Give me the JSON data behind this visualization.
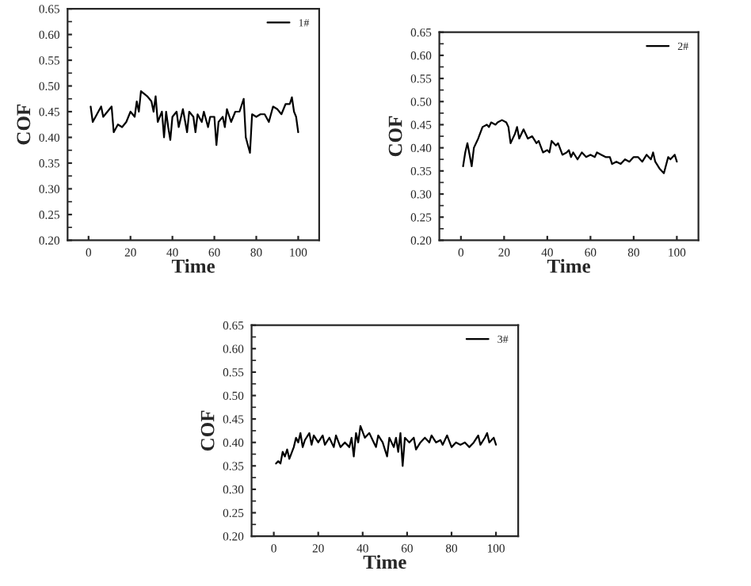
{
  "chart_data": [
    {
      "type": "line",
      "xlabel": "Time",
      "ylabel": "COF",
      "legend": "top right",
      "xlim": [
        -10,
        110
      ],
      "xticks": [
        0,
        20,
        40,
        60,
        80,
        100
      ],
      "ylim": [
        0.2,
        0.65
      ],
      "yticks": [
        {
          "value": 0.2,
          "label": "0.20"
        },
        {
          "value": 0.25,
          "label": "0.25"
        },
        {
          "value": 0.3,
          "label": "0.30"
        },
        {
          "value": 0.35,
          "label": "0.35"
        },
        {
          "value": 0.4,
          "label": "0.40"
        },
        {
          "value": 0.45,
          "label": "0.45"
        },
        {
          "value": 0.5,
          "label": "0.50"
        },
        {
          "value": 0.55,
          "label": "0.55"
        },
        {
          "value": 0.6,
          "label": "0.60"
        },
        {
          "value": 0.65,
          "label": "0.65"
        }
      ],
      "series": [
        {
          "name": "1#",
          "color": "#000000",
          "x": [
            1,
            2,
            4,
            6,
            7,
            9,
            11,
            12,
            14,
            16,
            18,
            20,
            22,
            23,
            24,
            25,
            28,
            30,
            31,
            32,
            33,
            35,
            36,
            37,
            38,
            39,
            40,
            42,
            43,
            45,
            47,
            48,
            50,
            51,
            52,
            54,
            55,
            57,
            58,
            60,
            61,
            62,
            64,
            65,
            66,
            68,
            70,
            72,
            74,
            75,
            77,
            78,
            80,
            82,
            84,
            86,
            88,
            90,
            92,
            94,
            96,
            97,
            98,
            99,
            100
          ],
          "values": [
            0.46,
            0.43,
            0.445,
            0.46,
            0.44,
            0.45,
            0.46,
            0.41,
            0.425,
            0.42,
            0.43,
            0.45,
            0.44,
            0.47,
            0.45,
            0.49,
            0.48,
            0.47,
            0.45,
            0.48,
            0.43,
            0.45,
            0.4,
            0.45,
            0.42,
            0.395,
            0.44,
            0.45,
            0.42,
            0.455,
            0.41,
            0.45,
            0.44,
            0.41,
            0.445,
            0.43,
            0.45,
            0.42,
            0.44,
            0.44,
            0.385,
            0.43,
            0.44,
            0.42,
            0.455,
            0.43,
            0.45,
            0.45,
            0.475,
            0.4,
            0.37,
            0.445,
            0.44,
            0.445,
            0.445,
            0.43,
            0.46,
            0.455,
            0.445,
            0.465,
            0.465,
            0.478,
            0.45,
            0.44,
            0.41
          ]
        }
      ]
    },
    {
      "type": "line",
      "xlabel": "Time",
      "ylabel": "COF",
      "legend": "top right",
      "xlim": [
        -10,
        110
      ],
      "xticks": [
        0,
        20,
        40,
        60,
        80,
        100
      ],
      "ylim": [
        0.2,
        0.65
      ],
      "yticks": [
        {
          "value": 0.2,
          "label": "0.20"
        },
        {
          "value": 0.25,
          "label": "0.25"
        },
        {
          "value": 0.3,
          "label": "0.30"
        },
        {
          "value": 0.35,
          "label": "0.35"
        },
        {
          "value": 0.4,
          "label": "0.40"
        },
        {
          "value": 0.45,
          "label": "0.45"
        },
        {
          "value": 0.5,
          "label": "0.50"
        },
        {
          "value": 0.55,
          "label": "0.55"
        },
        {
          "value": 0.6,
          "label": "0.60"
        },
        {
          "value": 0.65,
          "label": "0.65"
        }
      ],
      "series": [
        {
          "name": "2#",
          "color": "#000000",
          "x": [
            1,
            2,
            3,
            5,
            6,
            8,
            10,
            12,
            13,
            14,
            16,
            17,
            19,
            21,
            22,
            23,
            25,
            26,
            27,
            29,
            31,
            33,
            35,
            36,
            38,
            40,
            41,
            42,
            44,
            45,
            47,
            49,
            50,
            51,
            52,
            54,
            56,
            58,
            60,
            62,
            63,
            65,
            67,
            69,
            70,
            72,
            74,
            76,
            78,
            80,
            82,
            84,
            86,
            88,
            89,
            90,
            92,
            94,
            96,
            97,
            99,
            100
          ],
          "values": [
            0.36,
            0.39,
            0.41,
            0.36,
            0.4,
            0.42,
            0.445,
            0.45,
            0.445,
            0.455,
            0.45,
            0.455,
            0.46,
            0.455,
            0.445,
            0.41,
            0.43,
            0.445,
            0.42,
            0.44,
            0.42,
            0.425,
            0.41,
            0.415,
            0.39,
            0.395,
            0.39,
            0.415,
            0.405,
            0.41,
            0.385,
            0.39,
            0.395,
            0.38,
            0.39,
            0.375,
            0.39,
            0.38,
            0.385,
            0.38,
            0.39,
            0.385,
            0.38,
            0.38,
            0.365,
            0.37,
            0.365,
            0.375,
            0.37,
            0.38,
            0.38,
            0.37,
            0.385,
            0.375,
            0.39,
            0.37,
            0.355,
            0.345,
            0.38,
            0.375,
            0.385,
            0.37
          ]
        }
      ]
    },
    {
      "type": "line",
      "xlabel": "Time",
      "ylabel": "COF",
      "legend": "top right",
      "xlim": [
        -10,
        110
      ],
      "xticks": [
        0,
        20,
        40,
        60,
        80,
        100
      ],
      "ylim": [
        0.2,
        0.65
      ],
      "yticks": [
        {
          "value": 0.2,
          "label": "0.20"
        },
        {
          "value": 0.25,
          "label": "0.25"
        },
        {
          "value": 0.3,
          "label": "0.30"
        },
        {
          "value": 0.35,
          "label": "0.35"
        },
        {
          "value": 0.4,
          "label": "0.40"
        },
        {
          "value": 0.45,
          "label": "0.45"
        },
        {
          "value": 0.5,
          "label": "0.50"
        },
        {
          "value": 0.55,
          "label": "0.55"
        },
        {
          "value": 0.6,
          "label": "0.60"
        },
        {
          "value": 0.65,
          "label": "0.65"
        }
      ],
      "series": [
        {
          "name": "3#",
          "color": "#000000",
          "x": [
            1,
            2,
            3,
            4,
            5,
            6,
            7,
            9,
            10,
            11,
            12,
            13,
            14,
            16,
            17,
            18,
            20,
            22,
            23,
            25,
            27,
            28,
            30,
            32,
            34,
            35,
            36,
            37,
            38,
            39,
            41,
            43,
            45,
            46,
            47,
            49,
            51,
            52,
            54,
            55,
            56,
            57,
            58,
            59,
            61,
            63,
            64,
            66,
            68,
            70,
            71,
            73,
            75,
            76,
            78,
            80,
            82,
            84,
            86,
            88,
            90,
            92,
            93,
            95,
            96,
            97,
            99,
            100
          ],
          "values": [
            0.355,
            0.36,
            0.355,
            0.38,
            0.37,
            0.385,
            0.365,
            0.39,
            0.41,
            0.4,
            0.42,
            0.39,
            0.405,
            0.42,
            0.395,
            0.415,
            0.4,
            0.415,
            0.395,
            0.41,
            0.39,
            0.415,
            0.39,
            0.4,
            0.39,
            0.41,
            0.37,
            0.42,
            0.4,
            0.435,
            0.41,
            0.42,
            0.4,
            0.39,
            0.415,
            0.4,
            0.37,
            0.41,
            0.39,
            0.41,
            0.38,
            0.42,
            0.35,
            0.41,
            0.4,
            0.41,
            0.385,
            0.4,
            0.41,
            0.4,
            0.415,
            0.4,
            0.405,
            0.395,
            0.415,
            0.39,
            0.4,
            0.395,
            0.4,
            0.39,
            0.4,
            0.415,
            0.395,
            0.41,
            0.42,
            0.4,
            0.41,
            0.395
          ]
        }
      ]
    }
  ]
}
